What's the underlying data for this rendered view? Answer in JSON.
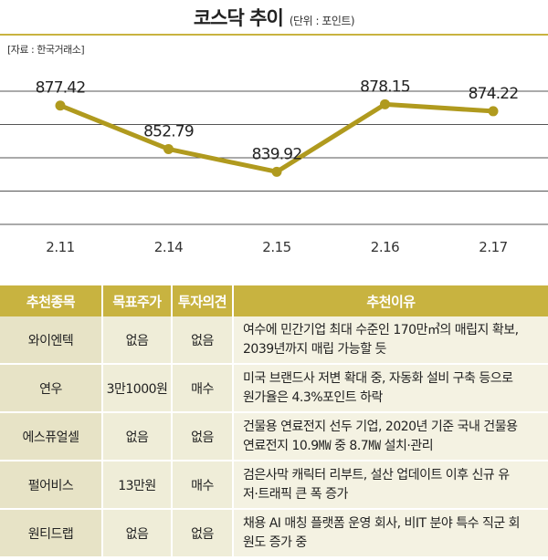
{
  "header": {
    "title": "코스닥 추이",
    "unit": "(단위 : 포인트)",
    "source": "[자료 : 한국거래소]"
  },
  "colors": {
    "accent": "#c8b340",
    "line": "#b09a1e",
    "cell_bg": "#efedd8"
  },
  "chart_data": {
    "type": "line",
    "title": "코스닥 추이",
    "xlabel": "",
    "ylabel": "",
    "categories": [
      "2.11",
      "2.14",
      "2.15",
      "2.16",
      "2.17"
    ],
    "series": [
      {
        "values": [
          877.42,
          852.79,
          839.92,
          878.15,
          874.22
        ]
      }
    ],
    "value_labels": [
      "877.42",
      "852.79",
      "839.92",
      "878.15",
      "874.22"
    ],
    "ylim": [
      805,
      900
    ],
    "grid": true,
    "legend": "none"
  },
  "table": {
    "headers": [
      "추천종목",
      "목표주가",
      "투자의견",
      "추천이유"
    ],
    "rows": [
      {
        "name": "와이엔텍",
        "target": "없음",
        "opinion": "없음",
        "reason1": "여수에 민간기업 최대 수준인 170만㎥의 매립지 확보,",
        "reason2": "2039년까지 매립 가능할 듯"
      },
      {
        "name": "연우",
        "target": "3만1000원",
        "opinion": "매수",
        "reason1": "미국 브랜드사 저변 확대 중, 자동화 설비 구축 등으로",
        "reason2": "원가율은 4.3%포인트 하락"
      },
      {
        "name": "에스퓨얼셀",
        "target": "없음",
        "opinion": "없음",
        "reason1": "건물용 연료전지 선두 기업, 2020년 기준 국내 건물용",
        "reason2": "연료전지 10.9㎿ 중 8.7㎿ 설치·관리"
      },
      {
        "name": "펄어비스",
        "target": "13만원",
        "opinion": "매수",
        "reason1": "검은사막 캐릭터 리부트, 설산 업데이트 이후 신규 유",
        "reason2": "저·트래픽 큰 폭 증가"
      },
      {
        "name": "원티드랩",
        "target": "없음",
        "opinion": "없음",
        "reason1": "채용 AI 매칭 플랫폼 운영 회사, 비IT 분야 특수 직군 회",
        "reason2": "원도 증가 중"
      }
    ]
  }
}
